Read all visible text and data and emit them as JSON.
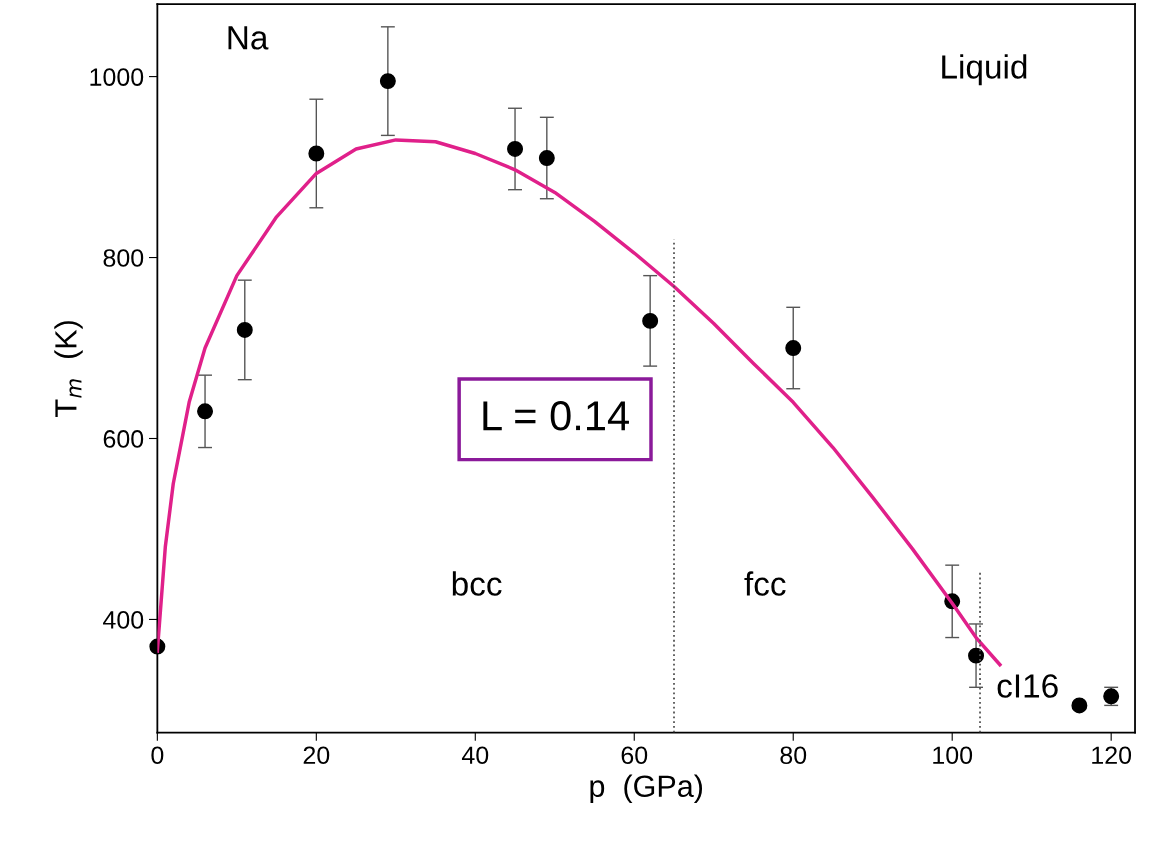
{
  "chart_data": {
    "type": "scatter",
    "xlabel": "p  (GPa)",
    "ylabel": "T$_{m}$  (K)",
    "xlim": [
      0,
      123
    ],
    "ylim": [
      275,
      1080
    ],
    "xticks": [
      0,
      20,
      40,
      60,
      80,
      100,
      120
    ],
    "yticks": [
      400,
      600,
      800,
      1000
    ],
    "marker": "circle",
    "grid": false,
    "legend": false,
    "annotations": [
      "Na",
      "Liquid",
      "bcc",
      "fcc",
      "cI16",
      "L = 0.14"
    ],
    "series": [
      {
        "color": "#000000",
        "x": [
          0,
          6,
          11,
          20,
          29,
          45,
          49,
          62,
          80,
          100,
          103,
          116,
          120
        ],
        "values": [
          370,
          630,
          720,
          915,
          995,
          920,
          910,
          730,
          700,
          420,
          360,
          305,
          315
        ],
        "errors": [
          null,
          40,
          55,
          60,
          60,
          45,
          45,
          50,
          45,
          40,
          35,
          null,
          10
        ]
      },
      {
        "type": "line",
        "color": "#e0208a",
        "line_style": "solid",
        "marker": "none",
        "x": [
          0,
          1,
          2,
          4,
          6,
          10,
          15,
          20,
          25,
          30,
          35,
          40,
          45,
          50,
          55,
          60,
          65,
          70,
          75,
          80,
          85,
          90,
          95,
          100,
          103,
          106
        ],
        "values": [
          365,
          480,
          550,
          640,
          700,
          780,
          845,
          893,
          920,
          930,
          928,
          915,
          897,
          872,
          840,
          805,
          768,
          727,
          683,
          640,
          590,
          535,
          478,
          418,
          380,
          350
        ]
      },
      {
        "type": "line",
        "color": "#555555",
        "line_style": "dotted",
        "marker": "none",
        "x": [
          65,
          65
        ],
        "values": [
          275,
          820
        ]
      },
      {
        "type": "line",
        "color": "#555555",
        "line_style": "dotted",
        "marker": "none",
        "x": [
          103.5,
          103.5
        ],
        "values": [
          275,
          455
        ]
      }
    ]
  }
}
